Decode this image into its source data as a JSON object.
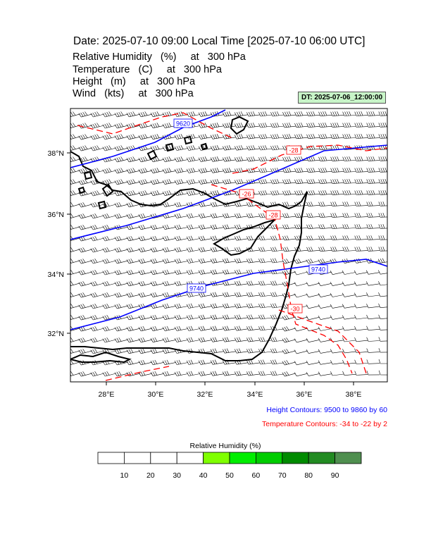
{
  "header": {
    "title": "Date: 2025-07-10  09:00 Local Time [2025-07-10  06:00 UTC]",
    "variables": [
      "Relative Humidity   (%)     at   300 hPa",
      "Temperature   (C)     at   300 hPa",
      "Height   (m)     at   300 hPa",
      "Wind   (kts)     at   300 hPa"
    ],
    "dt_badge": "DT: 2025-07-06_12:00:00"
  },
  "map": {
    "lon_range": [
      26.5,
      39.5
    ],
    "lat_range": [
      30.4,
      39.5
    ],
    "lon_ticks": [
      "28°E",
      "30°E",
      "32°E",
      "34°E",
      "36°E",
      "38°E"
    ],
    "lat_ticks": [
      "38°N",
      "36°N",
      "34°N",
      "32°N"
    ],
    "height_contour_labels": [
      "9620",
      "9740",
      "9740"
    ],
    "temperature_contour_labels": [
      "-28",
      "-26",
      "-28",
      "-30"
    ],
    "colors": {
      "height": "#0000ff",
      "temperature": "#ff0000",
      "coast": "#000000",
      "barb": "#000000"
    }
  },
  "legends": {
    "height_contours": "Height Contours: 9500 to 9860 by 60",
    "temperature_contours": "Temperature Contours: -34 to -22 by 2"
  },
  "colorbar": {
    "title": "Relative Humidity  (%)",
    "labels": [
      "10",
      "20",
      "30",
      "40",
      "50",
      "60",
      "70",
      "80",
      "90"
    ],
    "colors": [
      "#ffffff",
      "#ffffff",
      "#ffffff",
      "#ffffff",
      "#7fff00",
      "#00ee00",
      "#00cd00",
      "#008b00",
      "#228b22",
      "#4f8f4f"
    ]
  }
}
